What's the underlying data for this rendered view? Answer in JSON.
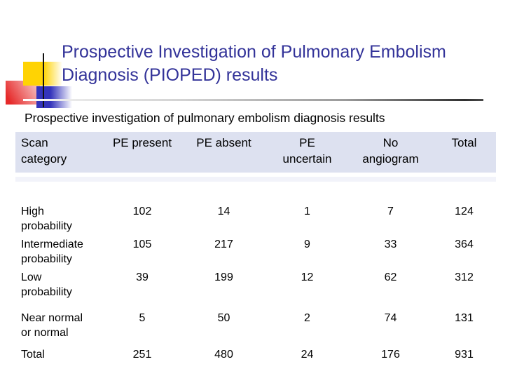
{
  "slide": {
    "title": "Prospective Investigation of Pulmonary Embolism Diagnosis (PIOPED) results",
    "caption": "Prospective investigation of pulmonary embolism diagnosis results"
  },
  "table": {
    "headers": [
      "Scan\ncategory",
      "PE present",
      "PE absent",
      "PE\nuncertain",
      "No\nangiogram",
      "Total"
    ],
    "rows": [
      {
        "label": "High\nprobability",
        "values": [
          "102",
          "14",
          "1",
          "7",
          "124"
        ]
      },
      {
        "label": "Intermediate\nprobability",
        "values": [
          "105",
          "217",
          "9",
          "33",
          "364"
        ]
      },
      {
        "label": "Low\nprobability",
        "values": [
          "39",
          "199",
          "12",
          "62",
          "312"
        ]
      },
      {
        "label": "Near normal\nor normal",
        "values": [
          "5",
          "50",
          "2",
          "74",
          "131"
        ]
      },
      {
        "label": "Total",
        "values": [
          "251",
          "480",
          "24",
          "176",
          "931"
        ]
      }
    ]
  },
  "colors": {
    "title_text": "#333399",
    "header_row_bg": "#dde1f0",
    "spacer_row_bg": "#f2f3fa",
    "decor_yellow": "#ffd303",
    "decor_red": "#e62a2a",
    "decor_blue": "#3434bb",
    "body_text": "#000000"
  },
  "chart_data": {
    "type": "table",
    "title": "Prospective investigation of pulmonary embolism diagnosis results",
    "categories": [
      "High probability",
      "Intermediate probability",
      "Low probability",
      "Near normal or normal",
      "Total"
    ],
    "series": [
      {
        "name": "PE present",
        "values": [
          102,
          105,
          39,
          5,
          251
        ]
      },
      {
        "name": "PE absent",
        "values": [
          14,
          217,
          199,
          50,
          480
        ]
      },
      {
        "name": "PE uncertain",
        "values": [
          1,
          9,
          12,
          2,
          24
        ]
      },
      {
        "name": "No angiogram",
        "values": [
          7,
          33,
          62,
          74,
          176
        ]
      },
      {
        "name": "Total",
        "values": [
          124,
          364,
          312,
          131,
          931
        ]
      }
    ]
  }
}
